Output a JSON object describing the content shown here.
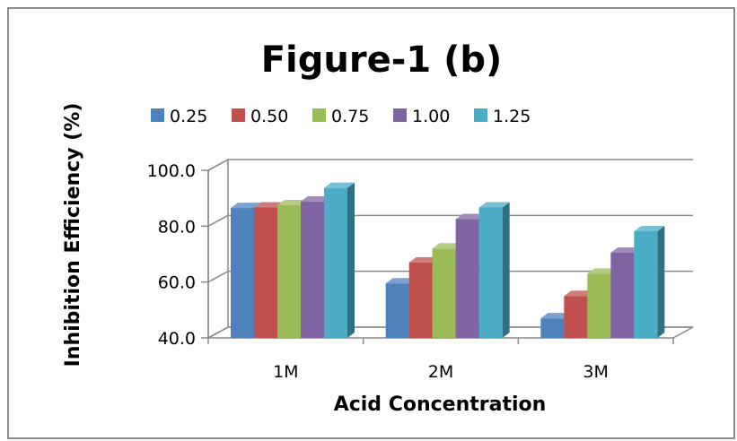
{
  "chart_data": {
    "type": "bar",
    "style": "3d-clustered-column",
    "title": "Figure-1 (b)",
    "xlabel": "Acid Concentration",
    "ylabel": "Inhibition Efficiency (%)",
    "categories": [
      "1M",
      "2M",
      "3M"
    ],
    "ylim": [
      40,
      100
    ],
    "yticks": [
      "40.0",
      "60.0",
      "80.0",
      "100.0"
    ],
    "grid": true,
    "legend_position": "top",
    "series": [
      {
        "name": "0.25",
        "color": "#4F81BD",
        "values": [
          86.5,
          59.5,
          47.0
        ]
      },
      {
        "name": "0.50",
        "color": "#C0504D",
        "values": [
          86.7,
          67.0,
          55.0
        ]
      },
      {
        "name": "0.75",
        "color": "#9BBB59",
        "values": [
          87.5,
          72.0,
          63.0
        ]
      },
      {
        "name": "1.00",
        "color": "#8064A2",
        "values": [
          88.8,
          82.5,
          70.5
        ]
      },
      {
        "name": "1.25",
        "color": "#4BACC6",
        "values": [
          93.7,
          86.7,
          78.2
        ]
      }
    ]
  }
}
